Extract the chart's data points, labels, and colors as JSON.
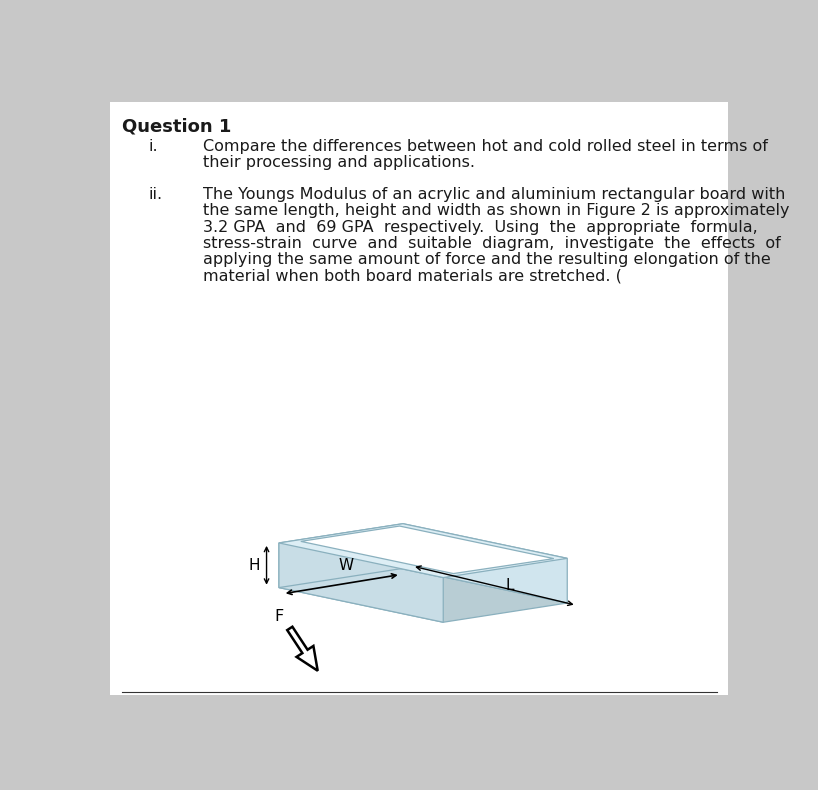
{
  "title": "Question 1",
  "background_color": "#c8c8c8",
  "page_background": "#ffffff",
  "text_color": "#1a1a1a",
  "q1_label": "i.",
  "q1_text_line1": "Compare the differences between hot and cold rolled steel in terms of",
  "q1_text_line2": "their processing and applications.",
  "q2_label": "ii.",
  "q2_text_line1": "The Youngs Modulus of an acrylic and aluminium rectangular board with",
  "q2_text_line2": "the same length, height and width as shown in Figure 2 is approximately",
  "q2_text_line3": "3.2 GPA  and  69 GPA  respectively.  Using  the  appropriate  formula,",
  "q2_text_line4": "stress-strain  curve  and  suitable  diagram,  investigate  the  effects  of",
  "q2_text_line5": "applying the same amount of force and the resulting elongation of the",
  "q2_text_line6": "material when both board materials are stretched. (",
  "box_face_top": "#ddeef5",
  "box_face_front": "#c8dde6",
  "box_face_right": "#d0e5ee",
  "box_edge_color": "#8ab0be",
  "inner_face_color": "#ffffff",
  "title_fontsize": 13,
  "body_fontsize": 11.5,
  "label_fontsize": 11.5
}
